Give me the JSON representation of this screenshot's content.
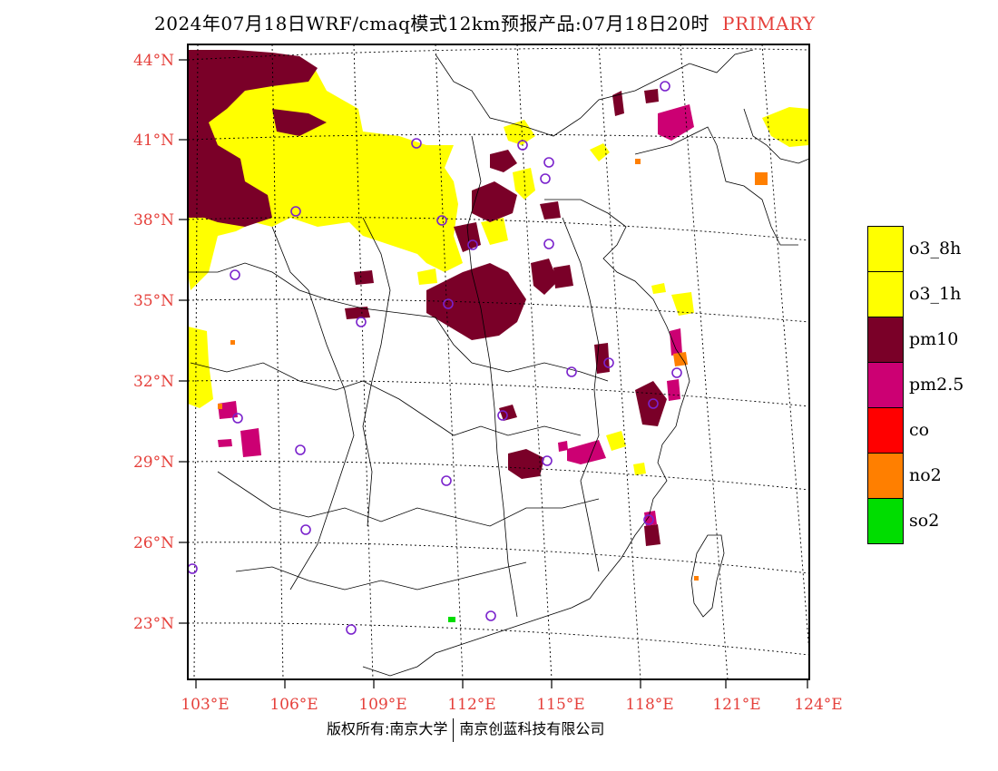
{
  "title": {
    "main": "2024年07月18日WRF/cmaq模式12km预报产品:07月18日20时",
    "tag": "PRIMARY"
  },
  "lat_labels": [
    "44°N",
    "41°N",
    "38°N",
    "35°N",
    "32°N",
    "29°N",
    "26°N",
    "23°N"
  ],
  "lon_labels": [
    "103°E",
    "106°E",
    "109°E",
    "112°E",
    "115°E",
    "118°E",
    "121°E",
    "124°E"
  ],
  "legend": [
    {
      "label": "o3_8h",
      "color": "#ffff00"
    },
    {
      "label": "o3_1h",
      "color": "#ffff00"
    },
    {
      "label": "pm10",
      "color": "#7a0028"
    },
    {
      "label": "pm2.5",
      "color": "#cc0073"
    },
    {
      "label": "co",
      "color": "#ff0000"
    },
    {
      "label": "no2",
      "color": "#ff7f00"
    },
    {
      "label": "so2",
      "color": "#00dd00"
    }
  ],
  "colors": {
    "o3": "#ffff00",
    "pm10": "#7a0028",
    "pm25": "#cc0073",
    "no2": "#ff7f00",
    "so2": "#00dd00",
    "station": "#7a22cc",
    "label": "#e5403b"
  },
  "copyright": {
    "left": "版权所有:南京大学",
    "right": "南京创蓝科技有限公司"
  }
}
